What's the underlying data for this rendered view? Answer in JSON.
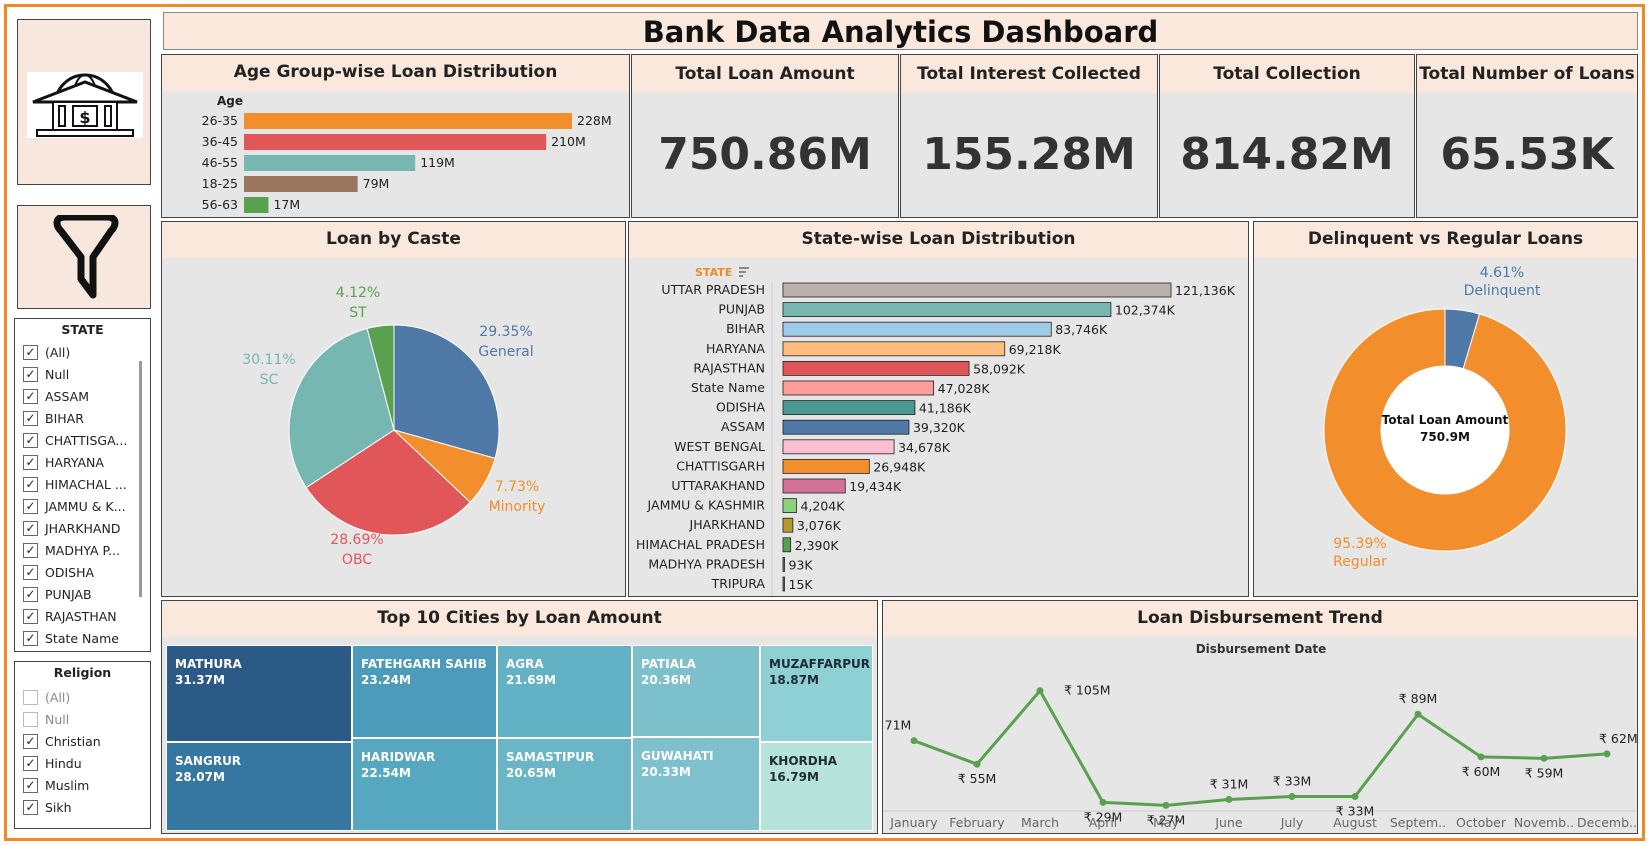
{
  "title": "Bank Data Analytics Dashboard",
  "logo_icon": "bank-icon",
  "filter_icon": "funnel-icon",
  "kpis": [
    {
      "label": "Total Loan Amount",
      "value": "750.86M"
    },
    {
      "label": "Total Interest Collected",
      "value": "155.28M"
    },
    {
      "label": "Total Collection",
      "value": "814.82M"
    },
    {
      "label": "Total Number of Loans",
      "value": "65.53K"
    }
  ],
  "state_filter": {
    "title": "STATE",
    "items": [
      "(All)",
      "Null",
      "ASSAM",
      "BIHAR",
      "CHATTISGA...",
      "HARYANA",
      "HIMACHAL ...",
      "JAMMU & K...",
      "JHARKHAND",
      "MADHYA P...",
      "ODISHA",
      "PUNJAB",
      "RAJASTHAN",
      "State Name"
    ],
    "checked": [
      true,
      true,
      true,
      true,
      true,
      true,
      true,
      true,
      true,
      true,
      true,
      true,
      true,
      true
    ]
  },
  "religion_filter": {
    "title": "Religion",
    "items": [
      "(All)",
      "Null",
      "Christian",
      "Hindu",
      "Muslim",
      "Sikh"
    ],
    "checked": [
      false,
      false,
      true,
      true,
      true,
      true
    ]
  },
  "age_chart": {
    "title": "Age Group-wise Loan Distribution",
    "axis_label": "Age",
    "chart_data": {
      "type": "bar",
      "categories": [
        "26-35",
        "36-45",
        "46-55",
        "18-25",
        "56-63"
      ],
      "values": [
        228,
        210,
        119,
        79,
        17
      ],
      "labels": [
        "228M",
        "210M",
        "119M",
        "79M",
        "17M"
      ],
      "colors": [
        "#f28e2b",
        "#e15759",
        "#76b7b2",
        "#9c755f",
        "#59a14f"
      ],
      "orientation": "horizontal"
    }
  },
  "caste_chart": {
    "title": "Loan by Caste",
    "chart_data": {
      "type": "pie",
      "categories": [
        "General",
        "Minority",
        "OBC",
        "SC",
        "ST"
      ],
      "values": [
        29.35,
        7.73,
        28.69,
        30.11,
        4.12
      ],
      "labels": [
        "29.35%",
        "7.73%",
        "28.69%",
        "30.11%",
        "4.12%"
      ],
      "colors": [
        "#4e79a7",
        "#f28e2b",
        "#e15759",
        "#76b7b2",
        "#59a14f"
      ]
    }
  },
  "state_chart": {
    "title": "State-wise Loan Distribution",
    "header_label": "STATE",
    "chart_data": {
      "type": "bar",
      "orientation": "horizontal",
      "categories": [
        "UTTAR PRADESH",
        "PUNJAB",
        "BIHAR",
        "HARYANA",
        "RAJASTHAN",
        "State Name",
        "ODISHA",
        "ASSAM",
        "WEST BENGAL",
        "CHATTISGARH",
        "UTTARAKHAND",
        "JAMMU & KASHMIR",
        "JHARKHAND",
        "HIMACHAL PRADESH",
        "MADHYA PRADESH",
        "TRIPURA"
      ],
      "values": [
        121136,
        102374,
        83746,
        69218,
        58092,
        47028,
        41186,
        39320,
        34678,
        26948,
        19434,
        4204,
        3076,
        2390,
        93,
        15
      ],
      "labels": [
        "121,136K",
        "102,374K",
        "83,746K",
        "69,218K",
        "58,092K",
        "47,028K",
        "41,186K",
        "39,320K",
        "34,678K",
        "26,948K",
        "19,434K",
        "4,204K",
        "3,076K",
        "2,390K",
        "93K",
        "15K"
      ],
      "colors": [
        "#bab0ac",
        "#76b7b2",
        "#a0cbe8",
        "#ffbe7d",
        "#e15759",
        "#ff9d9a",
        "#499894",
        "#4e79a7",
        "#fabfd2",
        "#f28e2b",
        "#d37295",
        "#8cd17d",
        "#b6992d",
        "#59a14f",
        "#79706e",
        "#79706e"
      ]
    }
  },
  "delinquent_chart": {
    "title": "Delinquent vs Regular Loans",
    "center_label": "Total Loan Amount",
    "center_value": "750.9M",
    "chart_data": {
      "type": "pie",
      "categories": [
        "Delinquent",
        "Regular"
      ],
      "values": [
        4.61,
        95.39
      ],
      "labels": [
        "4.61%",
        "95.39%"
      ],
      "colors": [
        "#4e79a7",
        "#f28e2b"
      ]
    }
  },
  "cities_chart": {
    "title": "Top 10 Cities by Loan Amount",
    "tiles": [
      {
        "name": "MATHURA",
        "value": "31.37M",
        "color": "#2c5a87"
      },
      {
        "name": "SANGRUR",
        "value": "28.07M",
        "color": "#3577a0"
      },
      {
        "name": "FATEHGARH SAHIB",
        "value": "23.24M",
        "color": "#4c9bba"
      },
      {
        "name": "HARIDWAR",
        "value": "22.54M",
        "color": "#56a7c0"
      },
      {
        "name": "AGRA",
        "value": "21.69M",
        "color": "#63b1c4"
      },
      {
        "name": "SAMASTIPUR",
        "value": "20.65M",
        "color": "#6ab5c6"
      },
      {
        "name": "PATIALA",
        "value": "20.36M",
        "color": "#7cc0cb"
      },
      {
        "name": "GUWAHATI",
        "value": "20.33M",
        "color": "#7ec1cc"
      },
      {
        "name": "MUZAFFARPUR",
        "value": "18.87M",
        "color": "#8ed0d3"
      },
      {
        "name": "KHORDHA",
        "value": "16.79M",
        "color": "#b6e3db"
      }
    ]
  },
  "trend_chart": {
    "title": "Loan Disbursement Trend",
    "axis_title": "Disbursement Date",
    "chart_data": {
      "type": "line",
      "categories": [
        "January",
        "February",
        "March",
        "April",
        "May",
        "June",
        "July",
        "August",
        "Septem..",
        "October",
        "Novemb..",
        "Decemb.."
      ],
      "values": [
        71,
        55,
        105,
        29,
        27,
        31,
        33,
        33,
        89,
        60,
        59,
        62
      ],
      "labels": [
        "₹ 71M",
        "₹ 55M",
        "₹ 105M",
        "₹ 29M",
        "₹ 27M",
        "₹ 31M",
        "₹ 33M",
        "₹ 33M",
        "₹ 89M",
        "₹ 60M",
        "₹ 59M",
        "₹ 62M"
      ],
      "color": "#59a14f"
    }
  }
}
